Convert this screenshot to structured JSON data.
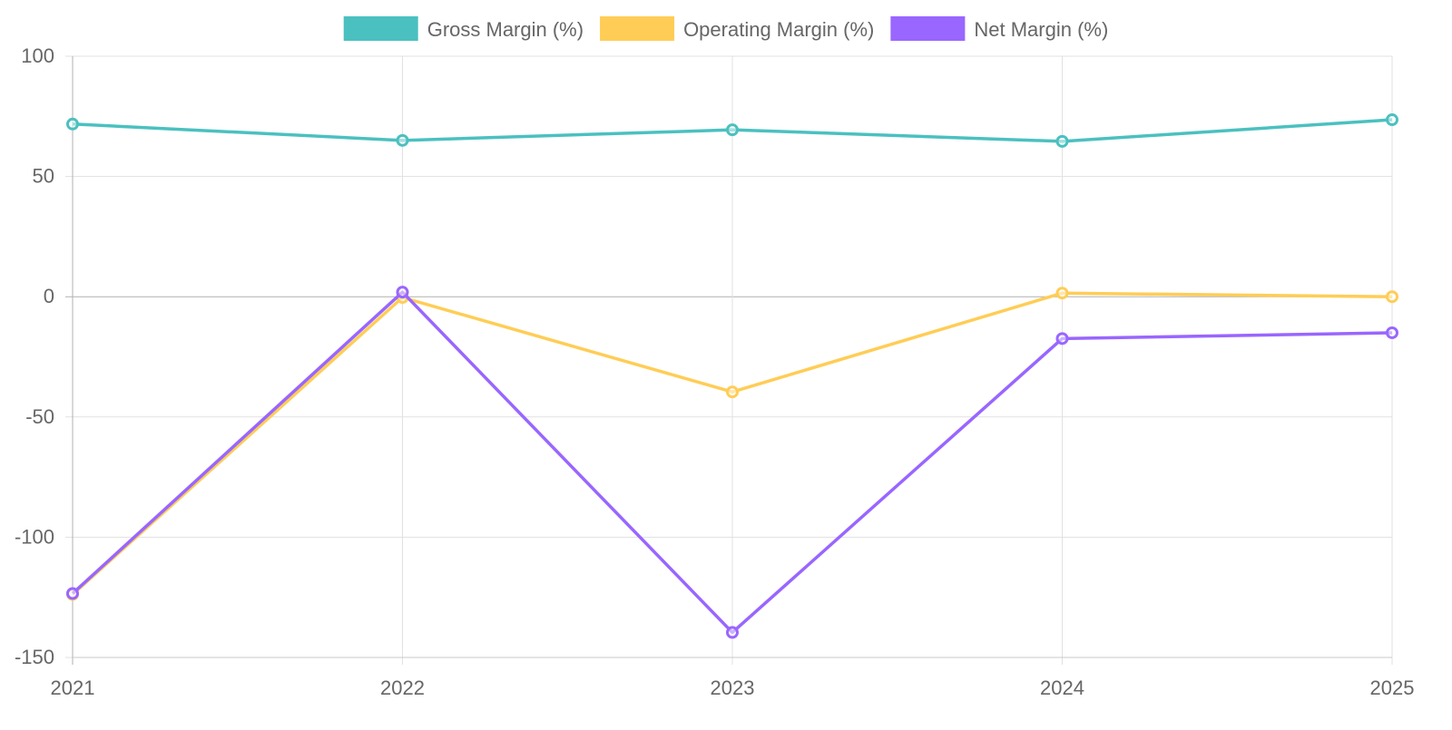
{
  "chart_data": {
    "type": "line",
    "title": "",
    "xlabel": "",
    "ylabel": "",
    "categories": [
      "2021",
      "2022",
      "2023",
      "2024",
      "2025"
    ],
    "ylim": [
      -150,
      100
    ],
    "yticks": [
      "100",
      "50",
      "0",
      "-50",
      "-100",
      "-150"
    ],
    "ytick_values": [
      100,
      50,
      0,
      -50,
      -100,
      -150
    ],
    "grid": true,
    "legend_position": "top",
    "series": [
      {
        "name": "Gross Margin (%)",
        "color": "#4BC0C0",
        "values": [
          71.8,
          65.0,
          69.4,
          64.6,
          73.6
        ]
      },
      {
        "name": "Operating Margin (%)",
        "color": "#FFCD56",
        "values": [
          -123.8,
          -0.3,
          -39.6,
          1.5,
          0.0
        ]
      },
      {
        "name": "Net Margin (%)",
        "color": "#9966FF",
        "values": [
          -123.4,
          1.9,
          -139.6,
          -17.4,
          -15.0
        ]
      }
    ]
  }
}
